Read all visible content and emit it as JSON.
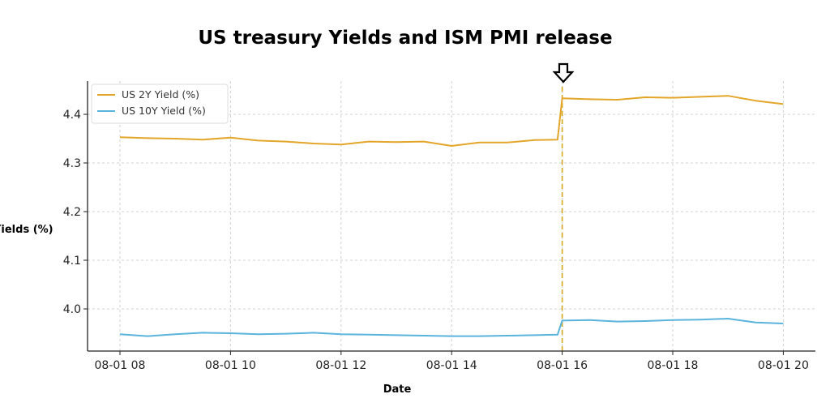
{
  "chart_data": {
    "type": "line",
    "title": "US treasury Yields and ISM PMI release",
    "xlabel": "Date",
    "ylabel": "Yields (%)",
    "xlim": [
      "08-01 07:25",
      "08-01 20:32"
    ],
    "ylim": [
      3.917,
      4.468
    ],
    "x_ticks": [
      "08-01 08",
      "08-01 10",
      "08-01 12",
      "08-01 14",
      "08-01 16",
      "08-01 18",
      "08-01 20"
    ],
    "y_ticks": [
      "4.0",
      "4.1",
      "4.2",
      "4.3",
      "4.4"
    ],
    "grid": true,
    "legend_position": "top-left",
    "event_marker": {
      "x": "08-01 16:00",
      "style": "dashed vertical line with down arrow",
      "color": "#d4a81c"
    },
    "x": [
      "08:00",
      "08:30",
      "09:00",
      "09:30",
      "10:00",
      "10:30",
      "11:00",
      "11:30",
      "12:00",
      "12:30",
      "13:00",
      "13:30",
      "14:00",
      "14:30",
      "15:00",
      "15:30",
      "15:55",
      "16:00",
      "16:30",
      "17:00",
      "17:30",
      "18:00",
      "18:30",
      "19:00",
      "19:30",
      "20:00"
    ],
    "series": [
      {
        "name": "US 2Y Yield (%)",
        "color": "#e3a62a",
        "values": [
          4.353,
          4.351,
          4.35,
          4.348,
          4.352,
          4.346,
          4.344,
          4.34,
          4.338,
          4.344,
          4.343,
          4.344,
          4.335,
          4.342,
          4.342,
          4.347,
          4.348,
          4.433,
          4.431,
          4.43,
          4.435,
          4.434,
          4.436,
          4.438,
          4.428,
          4.421
        ]
      },
      {
        "name": "US 10Y Yield (%)",
        "color": "#5ab4dc",
        "values": [
          3.948,
          3.944,
          3.948,
          3.951,
          3.95,
          3.948,
          3.949,
          3.951,
          3.948,
          3.947,
          3.946,
          3.945,
          3.944,
          3.944,
          3.945,
          3.946,
          3.947,
          3.976,
          3.977,
          3.974,
          3.975,
          3.977,
          3.978,
          3.98,
          3.972,
          3.97
        ]
      }
    ]
  }
}
